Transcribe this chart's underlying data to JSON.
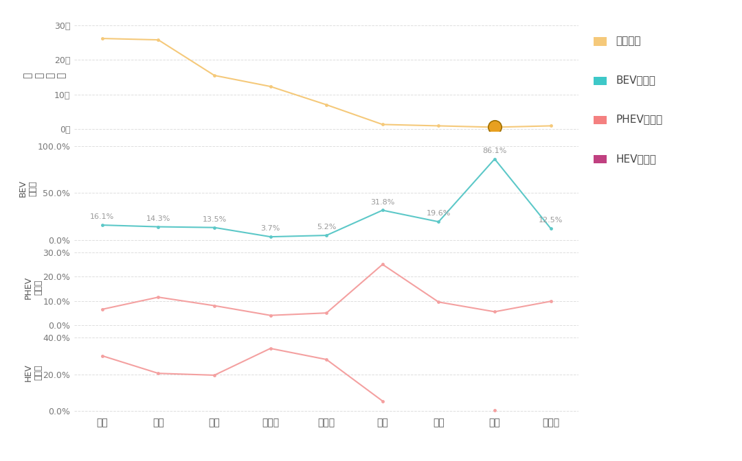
{
  "categories": [
    "英国",
    "德国",
    "法国",
    "意大利",
    "西班牙",
    "瑞典",
    "瑞士",
    "挪威",
    "葡萄牙"
  ],
  "sales_volume": [
    262000,
    258000,
    155000,
    123000,
    70000,
    13000,
    9000,
    5000,
    9000
  ],
  "bev_rate": [
    16.1,
    14.3,
    13.5,
    3.7,
    5.2,
    31.8,
    19.6,
    86.1,
    12.5
  ],
  "phev_rate": [
    6.5,
    11.5,
    8.0,
    4.0,
    5.0,
    25.0,
    9.5,
    5.5,
    9.8
  ],
  "hev_rate": [
    30.0,
    20.5,
    19.5,
    34.0,
    28.0,
    5.5,
    null,
    0.5,
    null
  ],
  "sales_color": "#F5C97A",
  "bev_color": "#5CC8C8",
  "phev_color": "#F4A0A0",
  "hev_color": "#F4A0A0",
  "bg_color": "#FFFFFF",
  "grid_color": "#DDDDDD",
  "legend_sales_color": "#F5C97A",
  "legend_bev_color": "#3EC8C8",
  "legend_phev_color": "#F48080",
  "legend_hev_color": "#C0408080",
  "ylabel1": "销\n售\n总\n量",
  "ylabel2": "BEV\n渗透率",
  "ylabel3": "PHEV\n渗透率",
  "ylabel4": "HEV\n渗透率",
  "legend_labels": [
    "销售总量",
    "BEV渗透率",
    "PHEV渗透率",
    "HEV渗透率"
  ],
  "legend_square_colors": [
    "#F5C97A",
    "#3EC8C8",
    "#F48080",
    "#C04080"
  ],
  "bev_labels": [
    "16.1%",
    "14.3%",
    "13.5%",
    "3.7%",
    "5.2%",
    "31.8%",
    "19.6%",
    "86.1%",
    "12.5%"
  ],
  "norway_idx": 7,
  "norway_marker_color": "#E8A020",
  "norway_marker_edge": "#A07000",
  "norway_marker_size": 14
}
